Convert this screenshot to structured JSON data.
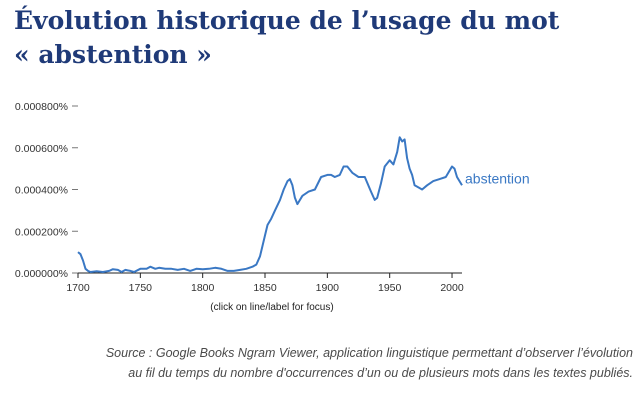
{
  "header": {
    "title_line1": "Évolution historique de l’usage du mot",
    "title_line2": "« abstention »"
  },
  "chart_data": {
    "type": "line",
    "title": "",
    "xlabel": "",
    "ylabel": "",
    "xlim": [
      1700,
      2008
    ],
    "ylim": [
      0,
      8e-06
    ],
    "x_ticks": [
      1700,
      1750,
      1800,
      1850,
      1900,
      1950,
      2000
    ],
    "x_tick_labels": [
      "1700",
      "1750",
      "1800",
      "1850",
      "1900",
      "1950",
      "2000"
    ],
    "y_ticks": [
      0,
      2e-06,
      4e-06,
      6e-06,
      8e-06
    ],
    "y_tick_labels": [
      "0.000000%",
      "0.000200%",
      "0.000400%",
      "0.000600%",
      "0.000800%"
    ],
    "hint": "(click on line/label for focus)",
    "color": "#3a78c4",
    "series": [
      {
        "name": "abstention",
        "x": [
          1700,
          1702,
          1704,
          1706,
          1708,
          1710,
          1715,
          1720,
          1725,
          1728,
          1732,
          1735,
          1738,
          1742,
          1745,
          1750,
          1755,
          1758,
          1762,
          1765,
          1770,
          1775,
          1780,
          1785,
          1790,
          1795,
          1800,
          1805,
          1810,
          1815,
          1820,
          1825,
          1830,
          1835,
          1840,
          1843,
          1846,
          1848,
          1850,
          1852,
          1855,
          1858,
          1862,
          1865,
          1868,
          1870,
          1872,
          1874,
          1876,
          1880,
          1885,
          1890,
          1895,
          1900,
          1903,
          1906,
          1910,
          1913,
          1916,
          1920,
          1925,
          1930,
          1935,
          1938,
          1940,
          1943,
          1946,
          1950,
          1953,
          1956,
          1958,
          1960,
          1962,
          1964,
          1966,
          1968,
          1970,
          1973,
          1976,
          1980,
          1985,
          1990,
          1995,
          2000,
          2002,
          2004,
          2006,
          2008
        ],
        "y": [
          1e-06,
          9e-07,
          6e-07,
          2e-07,
          1e-07,
          5e-08,
          8e-08,
          5e-08,
          1e-07,
          1.8e-07,
          1.5e-07,
          5e-08,
          1.5e-07,
          1e-07,
          5e-08,
          2e-07,
          2e-07,
          3e-07,
          2e-07,
          2.5e-07,
          2e-07,
          2e-07,
          1.5e-07,
          2e-07,
          1e-07,
          2e-07,
          1.8e-07,
          2e-07,
          2.5e-07,
          2e-07,
          1e-07,
          1e-07,
          1.5e-07,
          2e-07,
          3e-07,
          4e-07,
          8e-07,
          1.3e-06,
          1.8e-06,
          2.3e-06,
          2.6e-06,
          3e-06,
          3.5e-06,
          4e-06,
          4.4e-06,
          4.5e-06,
          4.2e-06,
          3.6e-06,
          3.3e-06,
          3.7e-06,
          3.9e-06,
          4e-06,
          4.6e-06,
          4.7e-06,
          4.7e-06,
          4.6e-06,
          4.7e-06,
          5.1e-06,
          5.1e-06,
          4.8e-06,
          4.6e-06,
          4.6e-06,
          3.9e-06,
          3.5e-06,
          3.6e-06,
          4.3e-06,
          5.1e-06,
          5.4e-06,
          5.2e-06,
          5.8e-06,
          6.5e-06,
          6.3e-06,
          6.4e-06,
          5.5e-06,
          5e-06,
          4.7e-06,
          4.2e-06,
          4.1e-06,
          4e-06,
          4.2e-06,
          4.4e-06,
          4.5e-06,
          4.6e-06,
          5.1e-06,
          5e-06,
          4.6e-06,
          4.4e-06,
          4.2e-06
        ]
      }
    ]
  },
  "footer": {
    "source_line1": "Source : Google Books Ngram Viewer, application linguistique permettant d’observer l’évolution",
    "source_line2": "au fil du temps du nombre d'occurrences d’un ou de plusieurs mots dans les textes publiés."
  }
}
